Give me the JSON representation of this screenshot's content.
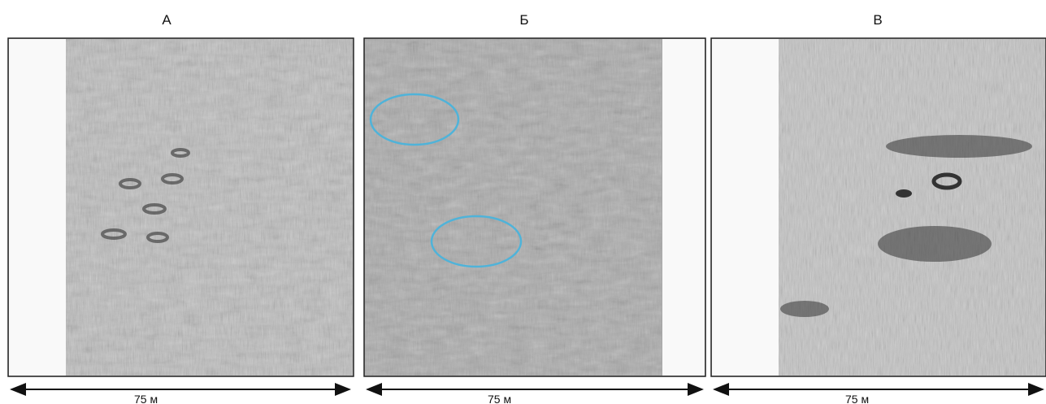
{
  "panels": [
    {
      "label": "А",
      "scale": "75 м"
    },
    {
      "label": "Б",
      "scale": "75 м"
    },
    {
      "label": "В",
      "scale": "75 м"
    }
  ]
}
